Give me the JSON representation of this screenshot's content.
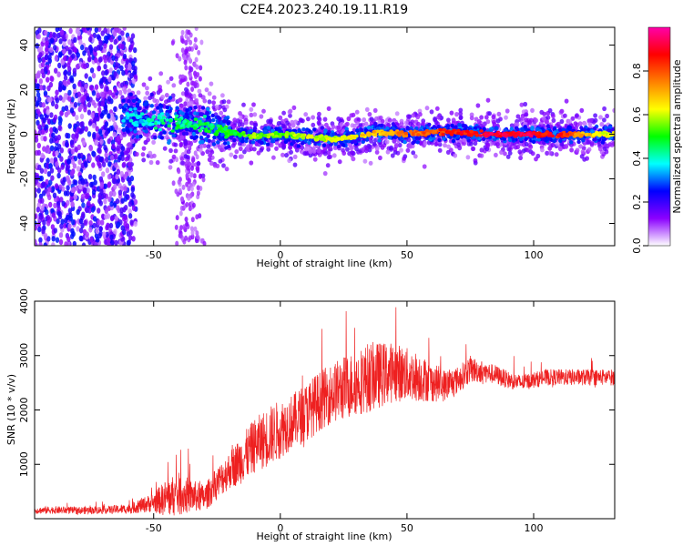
{
  "figure": {
    "title": "C2E4.2023.240.19.11.R19"
  },
  "chart_data": [
    {
      "type": "heatmap",
      "title": "C2E4.2023.240.19.11.R19",
      "xlabel": "Height of straight line (km)",
      "ylabel": "Frequency (Hz)",
      "xlim": [
        -97,
        132
      ],
      "ylim": [
        -50,
        48
      ],
      "xticks": [
        -50,
        0,
        50,
        100
      ],
      "yticks": [
        -40,
        -20,
        0,
        20,
        40
      ],
      "grid": false,
      "colorbar": {
        "label": "Normalized spectral amplitude",
        "range": [
          0.0,
          1.0
        ],
        "ticks": [
          0.0,
          0.2,
          0.4,
          0.6,
          0.8
        ],
        "colors": [
          "#ffffff",
          "#8b00ff",
          "#0000ff",
          "#00ffff",
          "#00ff00",
          "#ffff00",
          "#ff8000",
          "#ff0000",
          "#ff00aa"
        ]
      },
      "centerline": {
        "x": [
          -60,
          -50,
          -40,
          -30,
          -20,
          -10,
          0,
          10,
          20,
          30,
          40,
          50,
          60,
          70,
          80,
          90,
          100,
          110,
          120,
          130
        ],
        "y": [
          8,
          6,
          5,
          4,
          1,
          -1,
          0,
          -1,
          -2,
          -1,
          1,
          0,
          1,
          1,
          0,
          0,
          0,
          0,
          0,
          0
        ],
        "amplitude": [
          0.35,
          0.4,
          0.45,
          0.45,
          0.5,
          0.55,
          0.55,
          0.6,
          0.6,
          0.65,
          0.7,
          0.75,
          0.8,
          0.85,
          0.9,
          0.92,
          0.9,
          0.85,
          0.7,
          0.6
        ]
      }
    },
    {
      "type": "line",
      "xlabel": "Height of straight line (km)",
      "ylabel": "SNR (10 * v/v)",
      "xlim": [
        -97,
        132
      ],
      "ylim": [
        0,
        4000
      ],
      "xticks": [
        -50,
        0,
        50,
        100
      ],
      "yticks": [
        1000,
        2000,
        3000,
        4000
      ],
      "grid": false,
      "series": [
        {
          "color": "#ee2020",
          "x": [
            -97,
            -90,
            -80,
            -70,
            -60,
            -50,
            -45,
            -40,
            -35,
            -30,
            -25,
            -20,
            -15,
            -10,
            -5,
            0,
            5,
            10,
            15,
            20,
            25,
            30,
            35,
            40,
            45,
            50,
            55,
            60,
            65,
            70,
            75,
            80,
            85,
            90,
            95,
            100,
            105,
            110,
            115,
            120,
            125,
            130,
            132
          ],
          "y": [
            150,
            160,
            150,
            160,
            180,
            300,
            380,
            450,
            420,
            380,
            650,
            900,
            1100,
            1350,
            1500,
            1650,
            1800,
            1950,
            2150,
            2300,
            2400,
            2500,
            2600,
            2650,
            2700,
            2650,
            2600,
            2500,
            2450,
            2550,
            2750,
            2700,
            2650,
            2550,
            2500,
            2550,
            2600,
            2600,
            2600,
            2600,
            2600,
            2600,
            2600
          ],
          "spread": [
            60,
            70,
            70,
            70,
            90,
            180,
            350,
            400,
            300,
            250,
            300,
            350,
            450,
            500,
            550,
            550,
            500,
            550,
            550,
            550,
            600,
            600,
            650,
            600,
            550,
            500,
            450,
            350,
            300,
            250,
            250,
            200,
            180,
            160,
            150,
            150,
            150,
            150,
            150,
            150,
            150,
            150,
            150
          ]
        }
      ]
    }
  ]
}
